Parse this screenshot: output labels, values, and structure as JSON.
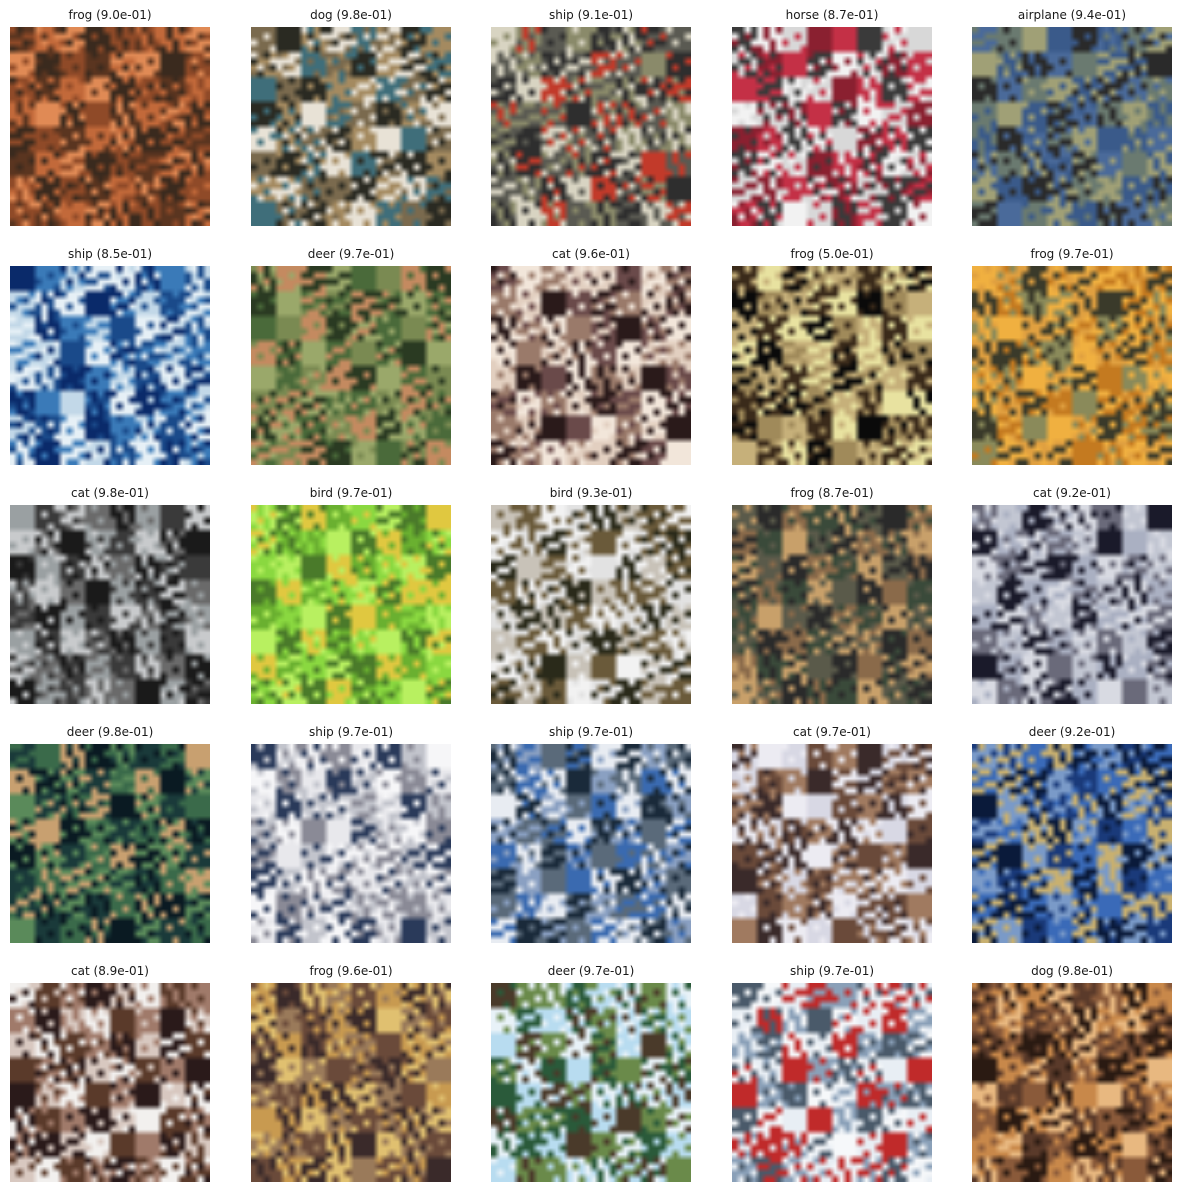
{
  "tiles": [
    {
      "title": "frog (9.0e-01)",
      "palette": [
        "#5a3520",
        "#c2693a",
        "#e08a55",
        "#3a2a1e",
        "#8f4a28"
      ]
    },
    {
      "title": "dog (9.8e-01)",
      "palette": [
        "#3f6e7a",
        "#7a6a4e",
        "#2a2a22",
        "#a48a60",
        "#e8e2d6"
      ]
    },
    {
      "title": "ship (9.1e-01)",
      "palette": [
        "#8a8a6a",
        "#2e2e2e",
        "#d8d4c2",
        "#c23a2a",
        "#5a5a52"
      ]
    },
    {
      "title": "horse (8.7e-01)",
      "palette": [
        "#d8d8d8",
        "#8a2030",
        "#c43046",
        "#3a3a3a",
        "#f2f2f2"
      ]
    },
    {
      "title": "airplane (9.4e-01)",
      "palette": [
        "#6a7a70",
        "#a0a076",
        "#3a5a8a",
        "#2a2a2a",
        "#4a6a9a"
      ]
    },
    {
      "title": "ship (8.5e-01)",
      "palette": [
        "#0a2a6a",
        "#3a7ab8",
        "#c2d8e8",
        "#1a4a8a",
        "#e6f0f6"
      ]
    },
    {
      "title": "deer (9.7e-01)",
      "palette": [
        "#4a6a3a",
        "#7a8a52",
        "#c48a60",
        "#2a3a22",
        "#9aa86a"
      ]
    },
    {
      "title": "cat (9.6e-01)",
      "palette": [
        "#e2cfc0",
        "#2a1a1a",
        "#6a4a4a",
        "#f2e6da",
        "#9a7a6a"
      ]
    },
    {
      "title": "frog (5.0e-01)",
      "palette": [
        "#0a0a0a",
        "#a08a5a",
        "#c6b07a",
        "#3a2a1a",
        "#e8e2a0"
      ]
    },
    {
      "title": "frog (9.7e-01)",
      "palette": [
        "#e0a040",
        "#3a3a2a",
        "#c47a20",
        "#8a8a5a",
        "#f0b040"
      ]
    },
    {
      "title": "cat (9.8e-01)",
      "palette": [
        "#9aa0a2",
        "#3a3a3a",
        "#c8cacc",
        "#6a6a6a",
        "#1a1a1a"
      ]
    },
    {
      "title": "bird (9.7e-01)",
      "palette": [
        "#8ad840",
        "#b8f060",
        "#4a7a2a",
        "#e0c840",
        "#6ab030"
      ]
    },
    {
      "title": "bird (9.3e-01)",
      "palette": [
        "#e2e2e2",
        "#2a2a1a",
        "#c8c2b8",
        "#6a5a3a",
        "#f2f2f2"
      ]
    },
    {
      "title": "frog (8.7e-01)",
      "palette": [
        "#8a6a4a",
        "#3a4a3a",
        "#c8a06a",
        "#5a5a4a",
        "#2a2a2a"
      ]
    },
    {
      "title": "cat (9.2e-01)",
      "palette": [
        "#c2c6d2",
        "#1a1a2a",
        "#aab0c2",
        "#d8dae2",
        "#6a6a7a"
      ]
    },
    {
      "title": "deer (9.8e-01)",
      "palette": [
        "#1a3a3a",
        "#3a6a4a",
        "#c8a070",
        "#0a1a22",
        "#5a8a5a"
      ]
    },
    {
      "title": "ship (9.7e-01)",
      "palette": [
        "#e8e8ec",
        "#2a3a5a",
        "#c2c4cc",
        "#f6f6f8",
        "#8a8a96"
      ]
    },
    {
      "title": "ship (9.7e-01)",
      "palette": [
        "#3a6ab0",
        "#e8ecf2",
        "#1a2a3a",
        "#8aa0c2",
        "#5a6a7a"
      ]
    },
    {
      "title": "cat (9.7e-01)",
      "palette": [
        "#d8d8e4",
        "#6a4a3a",
        "#a07a60",
        "#3a2a2a",
        "#ecebf2"
      ]
    },
    {
      "title": "deer (9.2e-01)",
      "palette": [
        "#1a3a7a",
        "#3a6ab8",
        "#c8b070",
        "#0a1a3a",
        "#7a9ac8"
      ]
    },
    {
      "title": "cat (8.9e-01)",
      "palette": [
        "#f2f0ee",
        "#5a3a2a",
        "#a07a6a",
        "#2a1a1a",
        "#d8c8c0"
      ]
    },
    {
      "title": "frog (9.6e-01)",
      "palette": [
        "#6a4a3a",
        "#c89a50",
        "#3a2a2a",
        "#e0c070",
        "#9a7a5a"
      ]
    },
    {
      "title": "deer (9.7e-01)",
      "palette": [
        "#2a5a3a",
        "#b8dcf0",
        "#4a3a2a",
        "#6a8a4a",
        "#e8f2f8"
      ]
    },
    {
      "title": "ship (9.7e-01)",
      "palette": [
        "#e8eef4",
        "#c02a2a",
        "#8aa0b8",
        "#4a5a6a",
        "#f6f8fa"
      ]
    },
    {
      "title": "dog (9.8e-01)",
      "palette": [
        "#2a1a12",
        "#c8884a",
        "#e8b880",
        "#5a3a2a",
        "#8a5a3a"
      ]
    }
  ]
}
